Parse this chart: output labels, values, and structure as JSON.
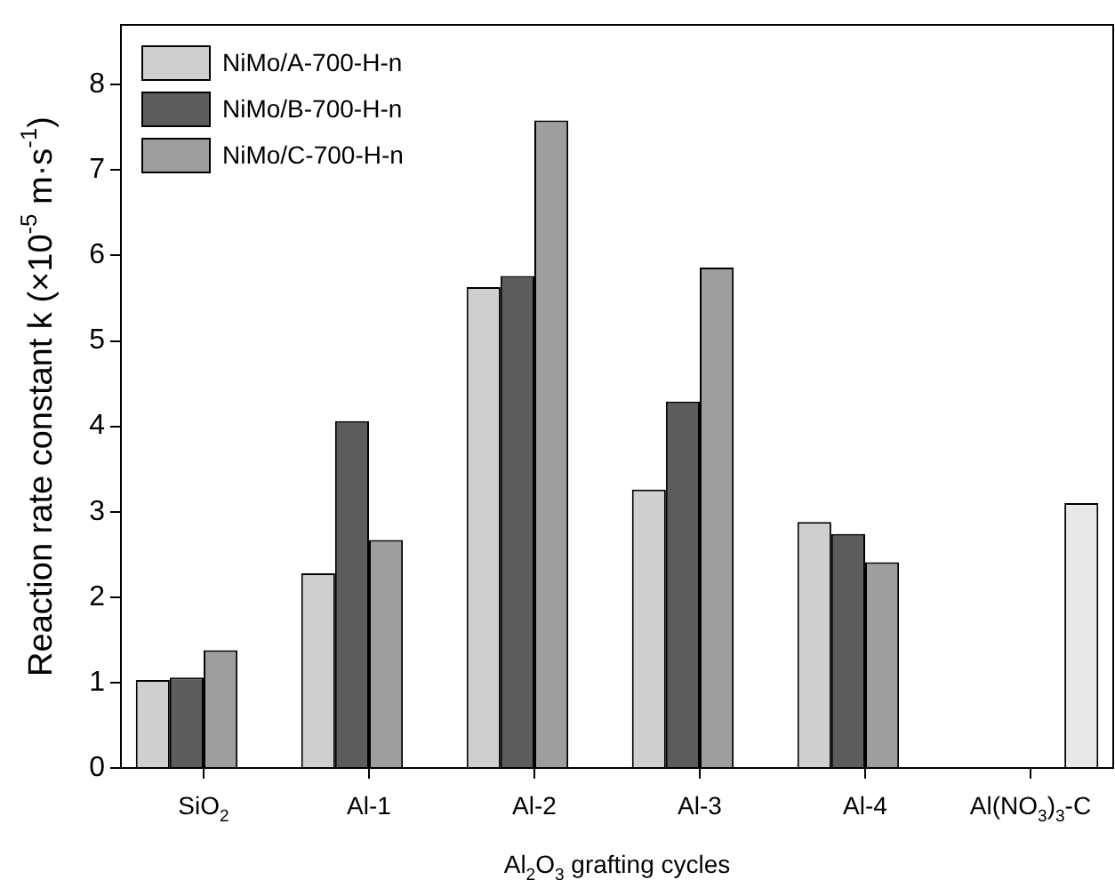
{
  "chart_data": {
    "type": "bar",
    "xlabel": "Al$_{2}$O$_{3}$ grafting cycles",
    "ylabel": "Reaction rate constant k (×10$^{-5}$ m·s$^{-1}$)",
    "categories": [
      "SiO$_{2}$",
      "Al-1",
      "Al-2",
      "Al-3",
      "Al-4",
      "Al(NO$_{3}$)$_{3}$-C"
    ],
    "series": [
      {
        "name": "NiMo/A-700-H-n",
        "color": "#cfcfcf",
        "values": [
          1.03,
          2.28,
          5.63,
          3.26,
          2.88,
          null
        ]
      },
      {
        "name": "NiMo/B-700-H-n",
        "color": "#5c5c5c",
        "values": [
          1.06,
          4.06,
          5.76,
          4.29,
          2.74,
          null
        ]
      },
      {
        "name": "NiMo/C-700-H-n",
        "color": "#9e9e9e",
        "values": [
          1.38,
          2.67,
          7.58,
          5.86,
          2.41,
          null
        ]
      },
      {
        "color": "#e8e8e8",
        "values": [
          null,
          null,
          null,
          null,
          null,
          3.1
        ]
      }
    ],
    "ylim": [
      0,
      8.7
    ],
    "yticks": [
      0,
      1,
      2,
      3,
      4,
      5,
      6,
      7,
      8
    ],
    "grid": false,
    "legend": "top left"
  }
}
